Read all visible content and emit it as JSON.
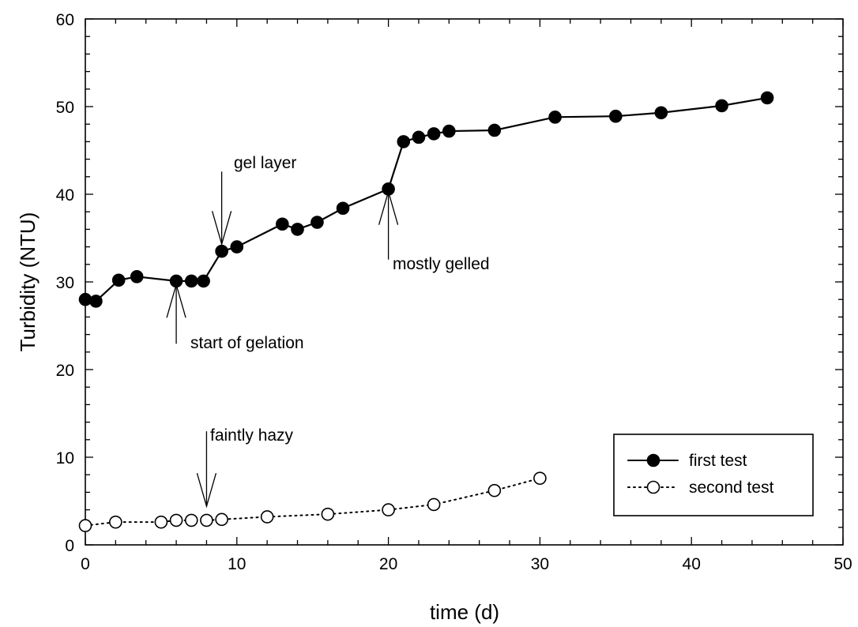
{
  "chart_data": {
    "type": "line",
    "xlabel": "time (d)",
    "ylabel": "Turbidity (NTU)",
    "xlim": [
      0,
      50
    ],
    "ylim": [
      0,
      60
    ],
    "x_ticks": [
      "0",
      "10",
      "20",
      "30",
      "40",
      "50"
    ],
    "y_ticks": [
      "0",
      "10",
      "20",
      "30",
      "40",
      "50",
      "60"
    ],
    "grid": false,
    "legend_position": "bottom-right",
    "series": [
      {
        "name": "first test",
        "marker": "filled-circle",
        "line_style": "solid",
        "x": [
          0,
          0.7,
          2.2,
          3.4,
          6,
          7,
          7.8,
          9,
          10,
          13,
          14,
          15.3,
          17,
          20,
          21,
          22,
          23,
          24,
          27,
          31,
          35,
          38,
          42,
          45
        ],
        "y": [
          28,
          27.8,
          30.2,
          30.6,
          30.1,
          30.1,
          30.1,
          33.5,
          34,
          36.6,
          36,
          36.8,
          38.4,
          40.6,
          46,
          46.5,
          46.9,
          47.2,
          47.3,
          48.8,
          48.9,
          49.3,
          50.1,
          51
        ]
      },
      {
        "name": "second test",
        "marker": "open-circle",
        "line_style": "dotted",
        "x": [
          0,
          2,
          5,
          6,
          7,
          8,
          9,
          12,
          16,
          20,
          23,
          27,
          30
        ],
        "y": [
          2.2,
          2.6,
          2.6,
          2.8,
          2.8,
          2.8,
          2.9,
          3.2,
          3.5,
          4,
          4.6,
          6.2,
          7.6
        ]
      }
    ],
    "annotations": [
      {
        "text": "gel layer",
        "arrow_to": [
          9,
          34.3
        ],
        "direction": "down"
      },
      {
        "text": "start of gelation",
        "arrow_to": [
          6,
          29.7
        ],
        "direction": "up"
      },
      {
        "text": "mostly gelled",
        "arrow_to": [
          20,
          40.3
        ],
        "direction": "up"
      },
      {
        "text": "faintly hazy",
        "arrow_to": [
          8,
          4.4
        ],
        "direction": "down"
      }
    ]
  }
}
